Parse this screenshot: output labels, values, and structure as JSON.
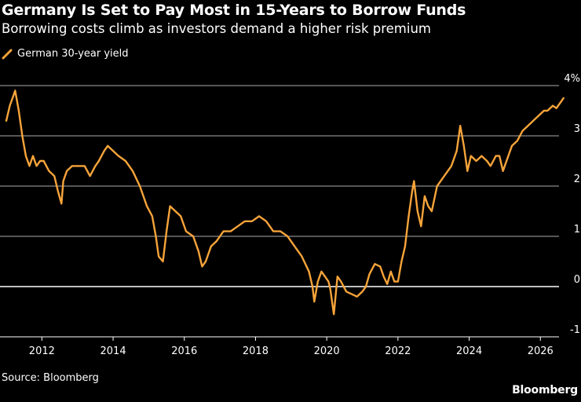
{
  "header": {
    "title": "Germany Is Set to Pay Most in 15-Years to Borrow Funds",
    "subtitle": "Borrowing costs climb as investors demand a higher risk premium"
  },
  "footer": {
    "source": "Source: Bloomberg",
    "brand": "Bloomberg"
  },
  "colors": {
    "background": "#000000",
    "line": "#f7a43a",
    "grid": "#ffffff",
    "text": "#ffffff"
  },
  "chart_data": {
    "type": "line",
    "title": "Germany Is Set to Pay Most in 15-Years to Borrow Funds",
    "subtitle": "Borrowing costs climb as investors demand a higher risk premium",
    "xlabel": "",
    "ylabel": "",
    "xlim": [
      2011.0,
      2026.7
    ],
    "ylim": [
      -1,
      4
    ],
    "y_ticks": [
      4,
      3,
      2,
      1,
      0,
      -1
    ],
    "y_tick_labels": [
      "4%",
      "3",
      "2",
      "1",
      "0",
      "-1"
    ],
    "x_ticks": [
      2012,
      2014,
      2016,
      2018,
      2020,
      2022,
      2024,
      2026
    ],
    "x_tick_labels": [
      "2012",
      "2014",
      "2016",
      "2018",
      "2020",
      "2022",
      "2024",
      "2026"
    ],
    "grid": "horizontal",
    "axis_side": "right",
    "legend": "top-left",
    "series": [
      {
        "name": "German 30-year yield",
        "x": [
          2011.0,
          2011.1,
          2011.2,
          2011.25,
          2011.35,
          2011.45,
          2011.55,
          2011.65,
          2011.75,
          2011.85,
          2011.95,
          2012.05,
          2012.2,
          2012.35,
          2012.45,
          2012.55,
          2012.6,
          2012.7,
          2012.85,
          2013.0,
          2013.2,
          2013.35,
          2013.5,
          2013.6,
          2013.75,
          2013.85,
          2014.0,
          2014.15,
          2014.35,
          2014.55,
          2014.75,
          2014.95,
          2015.1,
          2015.2,
          2015.28,
          2015.4,
          2015.5,
          2015.6,
          2015.75,
          2015.9,
          2016.05,
          2016.25,
          2016.4,
          2016.5,
          2016.6,
          2016.75,
          2016.9,
          2017.1,
          2017.3,
          2017.5,
          2017.7,
          2017.9,
          2018.1,
          2018.3,
          2018.5,
          2018.7,
          2018.9,
          2019.1,
          2019.3,
          2019.5,
          2019.6,
          2019.65,
          2019.75,
          2019.85,
          2019.95,
          2020.05,
          2020.1,
          2020.2,
          2020.3,
          2020.4,
          2020.55,
          2020.7,
          2020.85,
          2021.0,
          2021.1,
          2021.2,
          2021.35,
          2021.5,
          2021.6,
          2021.7,
          2021.8,
          2021.9,
          2022.0,
          2022.1,
          2022.2,
          2022.3,
          2022.4,
          2022.45,
          2022.55,
          2022.65,
          2022.75,
          2022.85,
          2022.95,
          2023.1,
          2023.3,
          2023.5,
          2023.65,
          2023.75,
          2023.85,
          2023.95,
          2024.05,
          2024.2,
          2024.35,
          2024.5,
          2024.6,
          2024.75,
          2024.85,
          2024.95,
          2025.1,
          2025.2,
          2025.35,
          2025.5,
          2025.65,
          2025.8,
          2025.95,
          2026.1,
          2026.2,
          2026.35,
          2026.45,
          2026.55,
          2026.65
        ],
        "y": [
          3.3,
          3.6,
          3.8,
          3.9,
          3.5,
          3.0,
          2.6,
          2.4,
          2.6,
          2.4,
          2.5,
          2.5,
          2.3,
          2.2,
          1.9,
          1.65,
          2.1,
          2.3,
          2.4,
          2.4,
          2.4,
          2.2,
          2.4,
          2.5,
          2.7,
          2.8,
          2.7,
          2.6,
          2.5,
          2.3,
          2.0,
          1.6,
          1.4,
          1.0,
          0.6,
          0.5,
          1.1,
          1.6,
          1.5,
          1.4,
          1.1,
          1.0,
          0.7,
          0.4,
          0.5,
          0.8,
          0.9,
          1.1,
          1.1,
          1.2,
          1.3,
          1.3,
          1.4,
          1.3,
          1.1,
          1.1,
          1.0,
          0.8,
          0.6,
          0.3,
          0.0,
          -0.3,
          0.1,
          0.3,
          0.2,
          0.1,
          -0.05,
          -0.55,
          0.2,
          0.1,
          -0.1,
          -0.15,
          -0.2,
          -0.1,
          0.0,
          0.25,
          0.45,
          0.4,
          0.2,
          0.05,
          0.3,
          0.1,
          0.1,
          0.5,
          0.8,
          1.4,
          1.9,
          2.1,
          1.5,
          1.2,
          1.8,
          1.6,
          1.5,
          2.0,
          2.2,
          2.4,
          2.7,
          3.2,
          2.8,
          2.3,
          2.6,
          2.5,
          2.6,
          2.5,
          2.4,
          2.6,
          2.6,
          2.3,
          2.6,
          2.8,
          2.9,
          3.1,
          3.2,
          3.3,
          3.4,
          3.5,
          3.5,
          3.6,
          3.55,
          3.65,
          3.75
        ]
      }
    ]
  }
}
